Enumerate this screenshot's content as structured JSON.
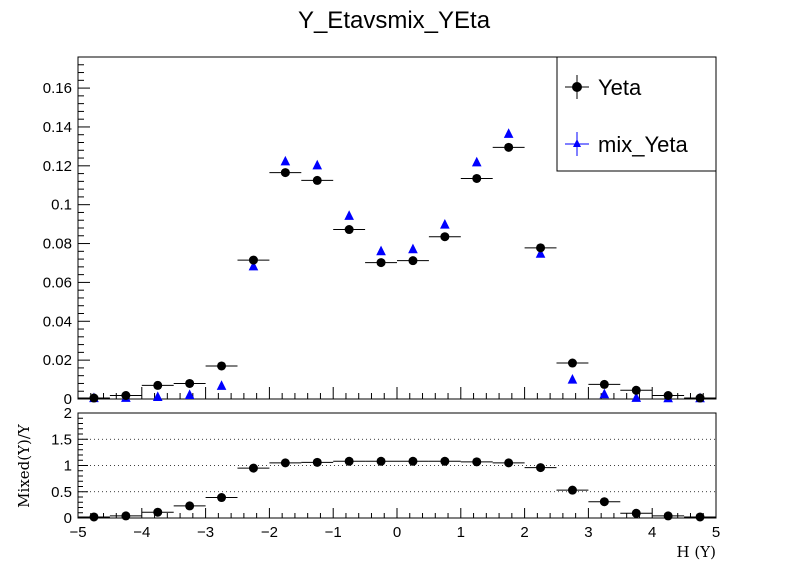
{
  "chart_data": [
    {
      "type": "scatter",
      "title": "Y_Etavsmix_YEta",
      "xlim": [
        -5,
        5
      ],
      "ylim": [
        0,
        0.176
      ],
      "yticks": [
        "0",
        "0.02",
        "0.04",
        "0.06",
        "0.08",
        "0.1",
        "0.12",
        "0.14",
        "0.16"
      ],
      "legend": {
        "placement": "top-right",
        "entries": [
          "Yeta",
          "mix_Yeta"
        ]
      },
      "series": [
        {
          "name": "Yeta",
          "marker": "circle",
          "color": "#000000",
          "x": [
            -4.75,
            -4.25,
            -3.75,
            -3.25,
            -2.75,
            -2.25,
            -1.75,
            -1.25,
            -0.75,
            -0.25,
            0.25,
            0.75,
            1.25,
            1.75,
            2.25,
            2.75,
            3.25,
            3.75,
            4.25,
            4.75
          ],
          "y": [
            0.0005,
            0.0018,
            0.007,
            0.008,
            0.017,
            0.0715,
            0.1165,
            0.1125,
            0.0872,
            0.0702,
            0.0712,
            0.0835,
            0.1135,
            0.1295,
            0.0778,
            0.0185,
            0.0075,
            0.0045,
            0.0018,
            0.0005
          ]
        },
        {
          "name": "mix_Yeta",
          "marker": "triangle",
          "color": "#0000ff",
          "x": [
            -4.75,
            -4.25,
            -3.75,
            -3.25,
            -2.75,
            -2.25,
            -1.75,
            -1.25,
            -0.75,
            -0.25,
            0.25,
            0.75,
            1.25,
            1.75,
            2.25,
            2.75,
            3.25,
            3.75,
            4.25,
            4.75
          ],
          "y": [
            0.0002,
            0.0003,
            0.0008,
            0.0018,
            0.0065,
            0.068,
            0.122,
            0.12,
            0.094,
            0.0758,
            0.0768,
            0.0895,
            0.1215,
            0.1362,
            0.0745,
            0.0097,
            0.0022,
            0.0003,
            0.0001,
            0.0001
          ]
        }
      ]
    },
    {
      "type": "scatter",
      "xlabel": "H (Y)",
      "ylabel": "Mixed(Y)/Y",
      "xlim": [
        -5,
        5
      ],
      "ylim": [
        0,
        2
      ],
      "xticks": [
        "−5",
        "−4",
        "−3",
        "−2",
        "−1",
        "0",
        "1",
        "2",
        "3",
        "4",
        "5"
      ],
      "yticks": [
        "0",
        "0.5",
        "1",
        "1.5",
        "2"
      ],
      "grid": "horizontal dotted",
      "series": [
        {
          "marker": "circle",
          "color": "#000000",
          "x": [
            -4.75,
            -4.25,
            -3.75,
            -3.25,
            -2.75,
            -2.25,
            -1.75,
            -1.25,
            -0.75,
            -0.25,
            0.25,
            0.75,
            1.25,
            1.75,
            2.25,
            2.75,
            3.25,
            3.75,
            4.25,
            4.75
          ],
          "y": [
            0.02,
            0.04,
            0.11,
            0.23,
            0.39,
            0.95,
            1.05,
            1.06,
            1.08,
            1.08,
            1.08,
            1.08,
            1.07,
            1.05,
            0.96,
            0.53,
            0.31,
            0.09,
            0.04,
            0.02
          ]
        }
      ]
    }
  ]
}
